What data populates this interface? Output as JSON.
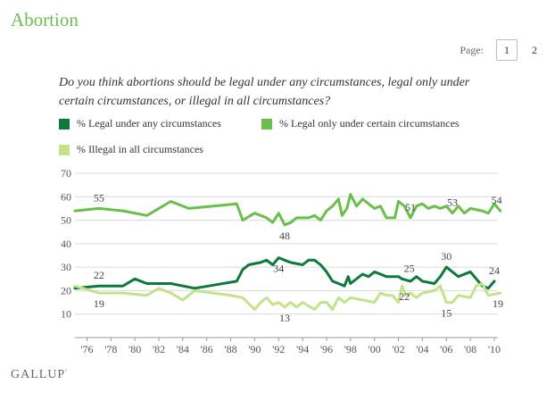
{
  "page": {
    "title": "Abortion",
    "pager": {
      "label": "Page:",
      "pages": [
        "1",
        "2"
      ],
      "current": "1"
    },
    "question": "Do you think abortions should be legal under any circumstances, legal only under certain circumstances, or illegal in all circumstances?",
    "source_logo": "GALLUP",
    "source_logo_mark": "'"
  },
  "chart_data": {
    "type": "line",
    "title": "",
    "xlabel": "",
    "ylabel": "",
    "ylim": [
      0,
      70
    ],
    "yticks": [
      10,
      20,
      30,
      40,
      50,
      60,
      70
    ],
    "xlim": [
      1975,
      2010.3
    ],
    "xticks": [
      1976,
      1978,
      1980,
      1982,
      1984,
      1986,
      1988,
      1990,
      1992,
      1994,
      1996,
      1998,
      2000,
      2002,
      2004,
      2006,
      2008,
      2010
    ],
    "xtick_labels": [
      "'76",
      "'78",
      "'80",
      "'82",
      "'84",
      "'86",
      "'88",
      "'90",
      "'92",
      "'94",
      "'96",
      "'98",
      "'00",
      "'02",
      "'04",
      "'06",
      "'08",
      "'10"
    ],
    "grid": "horizontal",
    "legend_position": "top",
    "series": [
      {
        "name": "% Legal under any circumstances",
        "color": "#0e7a3a",
        "points": [
          [
            1975.0,
            21
          ],
          [
            1977.0,
            22
          ],
          [
            1979.0,
            22
          ],
          [
            1980.0,
            25
          ],
          [
            1981.0,
            23
          ],
          [
            1983.0,
            23
          ],
          [
            1985.0,
            21
          ],
          [
            1988.5,
            24
          ],
          [
            1989.0,
            29
          ],
          [
            1989.5,
            31
          ],
          [
            1990.5,
            32
          ],
          [
            1991.0,
            33
          ],
          [
            1991.5,
            31
          ],
          [
            1992.0,
            34
          ],
          [
            1992.5,
            33
          ],
          [
            1993.0,
            32
          ],
          [
            1994.0,
            31
          ],
          [
            1994.5,
            33
          ],
          [
            1995.0,
            33
          ],
          [
            1995.5,
            31
          ],
          [
            1996.0,
            28
          ],
          [
            1996.5,
            24
          ],
          [
            1997.0,
            23
          ],
          [
            1997.5,
            22
          ],
          [
            1997.8,
            26
          ],
          [
            1998.0,
            23
          ],
          [
            1999.0,
            27
          ],
          [
            1999.5,
            26
          ],
          [
            2000.0,
            28
          ],
          [
            2000.5,
            27
          ],
          [
            2001.0,
            26
          ],
          [
            2001.5,
            26
          ],
          [
            2002.0,
            26
          ],
          [
            2002.3,
            25
          ],
          [
            2003.0,
            24
          ],
          [
            2003.5,
            26
          ],
          [
            2004.0,
            24
          ],
          [
            2005.0,
            23
          ],
          [
            2005.5,
            26
          ],
          [
            2006.0,
            30
          ],
          [
            2006.5,
            28
          ],
          [
            2007.0,
            26
          ],
          [
            2008.0,
            28
          ],
          [
            2009.0,
            22
          ],
          [
            2009.5,
            21
          ],
          [
            2010.0,
            24
          ]
        ],
        "labels": [
          {
            "x": 1977.0,
            "y": 22,
            "text": "22",
            "pos": "above"
          },
          {
            "x": 1992.0,
            "y": 34,
            "text": "34",
            "pos": "below"
          },
          {
            "x": 2002.9,
            "y": 25,
            "text": "25",
            "pos": "above"
          },
          {
            "x": 2006.0,
            "y": 30,
            "text": "30",
            "pos": "above"
          },
          {
            "x": 2010.0,
            "y": 24,
            "text": "24",
            "pos": "above"
          }
        ]
      },
      {
        "name": "% Legal only under certain circumstances",
        "color": "#6abf4b",
        "points": [
          [
            1975.0,
            54
          ],
          [
            1977.0,
            55
          ],
          [
            1979.0,
            54
          ],
          [
            1981.0,
            52
          ],
          [
            1983.0,
            58
          ],
          [
            1984.5,
            55
          ],
          [
            1988.5,
            57
          ],
          [
            1989.0,
            50
          ],
          [
            1990.0,
            53
          ],
          [
            1991.0,
            51
          ],
          [
            1991.5,
            49
          ],
          [
            1992.0,
            53
          ],
          [
            1992.5,
            48
          ],
          [
            1993.0,
            49
          ],
          [
            1993.5,
            51
          ],
          [
            1994.0,
            51
          ],
          [
            1994.5,
            51
          ],
          [
            1995.0,
            52
          ],
          [
            1995.5,
            50
          ],
          [
            1996.0,
            54
          ],
          [
            1996.5,
            56
          ],
          [
            1997.0,
            59
          ],
          [
            1997.3,
            52
          ],
          [
            1997.7,
            55
          ],
          [
            1998.0,
            61
          ],
          [
            1998.5,
            56
          ],
          [
            1999.0,
            59
          ],
          [
            2000.0,
            55
          ],
          [
            2000.5,
            56
          ],
          [
            2001.0,
            51
          ],
          [
            2001.7,
            51
          ],
          [
            2002.0,
            58
          ],
          [
            2002.5,
            56
          ],
          [
            2003.0,
            51
          ],
          [
            2003.5,
            56
          ],
          [
            2004.0,
            57
          ],
          [
            2004.5,
            55
          ],
          [
            2005.0,
            56
          ],
          [
            2005.5,
            55
          ],
          [
            2006.0,
            56
          ],
          [
            2006.5,
            53
          ],
          [
            2007.0,
            56
          ],
          [
            2007.5,
            53
          ],
          [
            2008.0,
            55
          ],
          [
            2009.0,
            54
          ],
          [
            2009.5,
            53
          ],
          [
            2010.0,
            57
          ],
          [
            2010.5,
            54
          ]
        ],
        "labels": [
          {
            "x": 1977.0,
            "y": 55,
            "text": "55",
            "pos": "above"
          },
          {
            "x": 1992.5,
            "y": 48,
            "text": "48",
            "pos": "below"
          },
          {
            "x": 2003.0,
            "y": 51,
            "text": "51",
            "pos": "above"
          },
          {
            "x": 2006.5,
            "y": 53,
            "text": "53",
            "pos": "above"
          },
          {
            "x": 2010.2,
            "y": 54,
            "text": "54",
            "pos": "above"
          }
        ]
      },
      {
        "name": "% Illegal in all circumstances",
        "color": "#c3e38a",
        "points": [
          [
            1975.0,
            22
          ],
          [
            1977.0,
            19
          ],
          [
            1979.0,
            19
          ],
          [
            1981.0,
            18
          ],
          [
            1982.0,
            21
          ],
          [
            1983.0,
            19
          ],
          [
            1984.0,
            16
          ],
          [
            1985.0,
            20
          ],
          [
            1988.0,
            18
          ],
          [
            1989.0,
            17
          ],
          [
            1990.0,
            12
          ],
          [
            1990.5,
            15
          ],
          [
            1991.0,
            17
          ],
          [
            1991.5,
            14
          ],
          [
            1992.0,
            15
          ],
          [
            1992.5,
            13
          ],
          [
            1993.0,
            15
          ],
          [
            1993.5,
            13
          ],
          [
            1994.0,
            15
          ],
          [
            1995.0,
            12
          ],
          [
            1995.5,
            15
          ],
          [
            1996.0,
            15
          ],
          [
            1996.5,
            12
          ],
          [
            1997.0,
            17
          ],
          [
            1997.5,
            15
          ],
          [
            1998.0,
            17
          ],
          [
            1999.0,
            16
          ],
          [
            2000.0,
            15
          ],
          [
            2000.5,
            19
          ],
          [
            2001.0,
            18
          ],
          [
            2001.5,
            18
          ],
          [
            2002.0,
            15
          ],
          [
            2002.3,
            22
          ],
          [
            2002.6,
            18
          ],
          [
            2003.0,
            19
          ],
          [
            2003.5,
            17
          ],
          [
            2004.0,
            19
          ],
          [
            2005.0,
            20
          ],
          [
            2005.5,
            22
          ],
          [
            2006.0,
            15
          ],
          [
            2006.5,
            15
          ],
          [
            2007.0,
            18
          ],
          [
            2008.0,
            17
          ],
          [
            2008.5,
            22
          ],
          [
            2009.0,
            23
          ],
          [
            2009.5,
            18
          ],
          [
            2010.5,
            19
          ]
        ],
        "labels": [
          {
            "x": 1977.0,
            "y": 19,
            "text": "19",
            "pos": "below"
          },
          {
            "x": 1992.5,
            "y": 13,
            "text": "13",
            "pos": "below"
          },
          {
            "x": 2002.5,
            "y": 22,
            "text": "22",
            "pos": "below"
          },
          {
            "x": 2006.0,
            "y": 15,
            "text": "15",
            "pos": "below"
          },
          {
            "x": 2010.3,
            "y": 19,
            "text": "19",
            "pos": "below"
          }
        ]
      }
    ]
  }
}
